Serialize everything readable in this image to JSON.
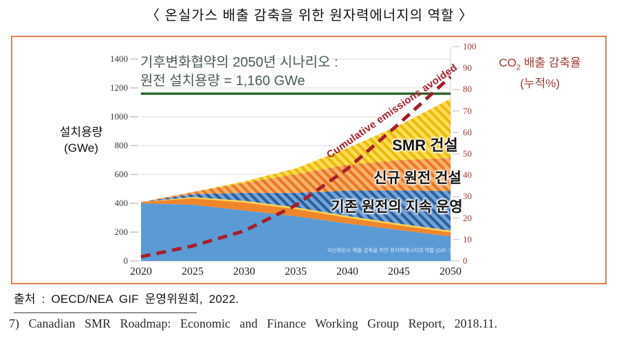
{
  "title": "〈 온실가스 배출 감축을 위한 원자력에너지의 역할 〉",
  "chart": {
    "scenario_note": {
      "line1": "기후변화협약의 2050년 시나리오 :",
      "line2": "원전 설치용량 = 1,160 GWe"
    },
    "left_axis_title": {
      "line1": "설치용량",
      "line2": "(GWe)"
    },
    "right_axis_title": {
      "prefix": "CO",
      "sub": "2",
      "suffix": " 배출 감축율",
      "line2": "(누적%)"
    },
    "caption": "이산화탄소 배출 감축을 위한 원자력에너지의 역할 (GIF, '22)"
  },
  "chart_data": {
    "type": "area",
    "stacked": true,
    "x": [
      2020,
      2025,
      2030,
      2035,
      2040,
      2045,
      2050
    ],
    "left_ticks": [
      0,
      200,
      400,
      600,
      800,
      1000,
      1200,
      1400
    ],
    "right_ticks": [
      0,
      10,
      20,
      30,
      40,
      50,
      60,
      70,
      80,
      90,
      100
    ],
    "ylim_left": [
      0,
      1400
    ],
    "ylim_right": [
      0,
      100
    ],
    "stacked_series": [
      {
        "name": "existing-fleet-operating",
        "label": "",
        "hatch": false,
        "color": "#5b9bd5",
        "values": [
          400,
          390,
          350,
          310,
          260,
          215,
          170
        ]
      },
      {
        "name": "reactors-under-construction",
        "label": "",
        "hatch": false,
        "color": "#f0862b",
        "values": [
          8,
          45,
          55,
          50,
          40,
          32,
          28
        ]
      },
      {
        "name": "smr-committed",
        "label": "",
        "hatch": false,
        "color": "#ffd34d",
        "values": [
          0,
          8,
          12,
          12,
          12,
          12,
          12
        ]
      },
      {
        "name": "existing-fleet-lto",
        "label": "기존 원전의 지속 운영",
        "hatch": true,
        "color": "#6fa4da",
        "stripe": "#2e5d97",
        "values": [
          0,
          20,
          55,
          100,
          175,
          230,
          275
        ]
      },
      {
        "name": "new-nuclear-build",
        "label": "신규 원전 건설",
        "hatch": true,
        "color": "#f6b26b",
        "stripe": "#ed7425",
        "values": [
          0,
          15,
          70,
          130,
          180,
          210,
          230
        ]
      },
      {
        "name": "smr-build",
        "label": "SMR 건설",
        "hatch": true,
        "color": "#ffdd55",
        "stripe": "#eab90e",
        "values": [
          0,
          0,
          10,
          40,
          115,
          240,
          410
        ]
      }
    ],
    "line_series": {
      "name": "cumulative-emissions-avoided",
      "label": "Cumulative emissions avoided",
      "axis": "right",
      "style": "dashed",
      "color": "#a81e2c",
      "values": [
        2,
        7,
        14,
        26,
        43,
        64,
        86
      ]
    },
    "reference_line": {
      "value": 1160,
      "label_value": "1,160 GWe",
      "color": "#2c652e"
    }
  },
  "source": "출처 : OECD/NEA GIF 운영위원회, 2022.",
  "footnote": "7) Canadian SMR Roadmap: Economic and Finance Working Group Report, 2018.11."
}
